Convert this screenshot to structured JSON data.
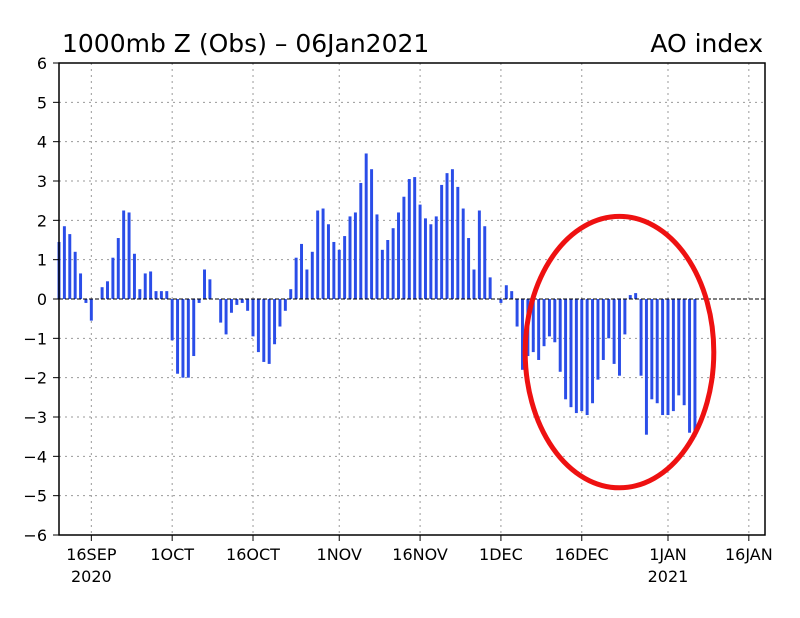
{
  "chart_data": {
    "type": "bar",
    "title": "1000mb Z (Obs) – 06Jan2021",
    "title_right": "AO index",
    "xlabel": "",
    "ylabel": "",
    "ylim": [
      -6,
      6
    ],
    "yticks": [
      -6,
      -5,
      -4,
      -3,
      -2,
      -1,
      0,
      1,
      2,
      3,
      4,
      5,
      6
    ],
    "xrange_start": "2020-09-10",
    "xrange_end": "2021-01-19",
    "grid": true,
    "bar_color": "#2a4de8",
    "xticks": [
      {
        "date": "2020-09-16",
        "label": "16SEP",
        "sublabel": "2020"
      },
      {
        "date": "2020-10-01",
        "label": "1OCT",
        "sublabel": ""
      },
      {
        "date": "2020-10-16",
        "label": "16OCT",
        "sublabel": ""
      },
      {
        "date": "2020-11-01",
        "label": "1NOV",
        "sublabel": ""
      },
      {
        "date": "2020-11-16",
        "label": "16NOV",
        "sublabel": ""
      },
      {
        "date": "2020-12-01",
        "label": "1DEC",
        "sublabel": ""
      },
      {
        "date": "2020-12-16",
        "label": "16DEC",
        "sublabel": ""
      },
      {
        "date": "2021-01-01",
        "label": "1JAN",
        "sublabel": "2021"
      },
      {
        "date": "2021-01-16",
        "label": "16JAN",
        "sublabel": ""
      }
    ],
    "x_start": "2020-09-10",
    "values": [
      1.45,
      1.85,
      1.65,
      1.2,
      0.65,
      -0.1,
      -0.55,
      0.0,
      0.3,
      0.45,
      1.05,
      1.55,
      2.25,
      2.2,
      1.15,
      0.25,
      0.65,
      0.7,
      0.2,
      0.2,
      0.2,
      -1.05,
      -1.9,
      -2.0,
      -2.0,
      -1.45,
      -0.1,
      0.75,
      0.5,
      0.0,
      -0.6,
      -0.9,
      -0.35,
      -0.15,
      -0.1,
      -0.3,
      -0.95,
      -1.35,
      -1.6,
      -1.65,
      -1.15,
      -0.7,
      -0.3,
      0.25,
      1.05,
      1.4,
      0.75,
      1.2,
      2.25,
      2.3,
      1.9,
      1.45,
      1.25,
      1.6,
      2.1,
      2.2,
      2.95,
      3.7,
      3.3,
      2.15,
      1.25,
      1.5,
      1.8,
      2.2,
      2.6,
      3.05,
      3.1,
      2.4,
      2.05,
      1.9,
      2.1,
      2.9,
      3.2,
      3.3,
      2.85,
      2.3,
      1.55,
      0.75,
      2.25,
      1.85,
      0.55,
      0.0,
      -0.1,
      0.35,
      0.2,
      -0.7,
      -1.8,
      -1.45,
      -1.35,
      -1.55,
      -1.2,
      -0.95,
      -1.1,
      -1.85,
      -2.55,
      -2.75,
      -2.9,
      -2.85,
      -2.95,
      -2.65,
      -2.05,
      -1.55,
      -1.0,
      -1.65,
      -1.95,
      -0.9,
      0.1,
      0.15,
      -1.95,
      -3.45,
      -2.55,
      -2.65,
      -2.95,
      -2.95,
      -2.85,
      -2.45,
      -2.7,
      -3.4,
      -3.5
    ]
  },
  "annotation": {
    "type": "circle",
    "color": "#ee1111",
    "center_date": "2020-12-23",
    "center_value": -1.35,
    "radius_days": 17.5,
    "radius_value_top": 3.45,
    "radius_value_bottom": 3.45
  }
}
